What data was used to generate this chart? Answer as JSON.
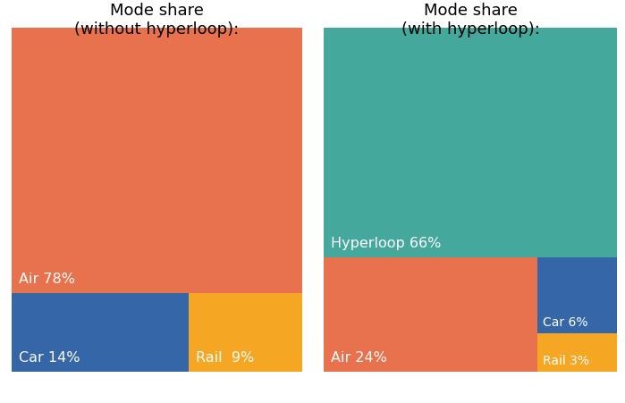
{
  "left_title": "Mode share\n(without hyperloop):",
  "right_title": "Mode share\n(with hyperloop):",
  "left": {
    "Air": {
      "pct": 78,
      "color": "#E8724E"
    },
    "Car": {
      "pct": 14,
      "color": "#3567A8"
    },
    "Rail": {
      "pct": 9,
      "color": "#F5A623"
    }
  },
  "right": {
    "Hyperloop": {
      "pct": 66,
      "color": "#45A89C"
    },
    "Air": {
      "pct": 24,
      "color": "#E8724E"
    },
    "Car": {
      "pct": 6,
      "color": "#3567A8"
    },
    "Rail": {
      "pct": 3,
      "color": "#F5A623"
    }
  },
  "bg_color": "#FFFFFF",
  "text_color_white": "#FFFFFF",
  "title_color": "#000000",
  "title_fontsize": 13,
  "label_fontsize": 11.5
}
